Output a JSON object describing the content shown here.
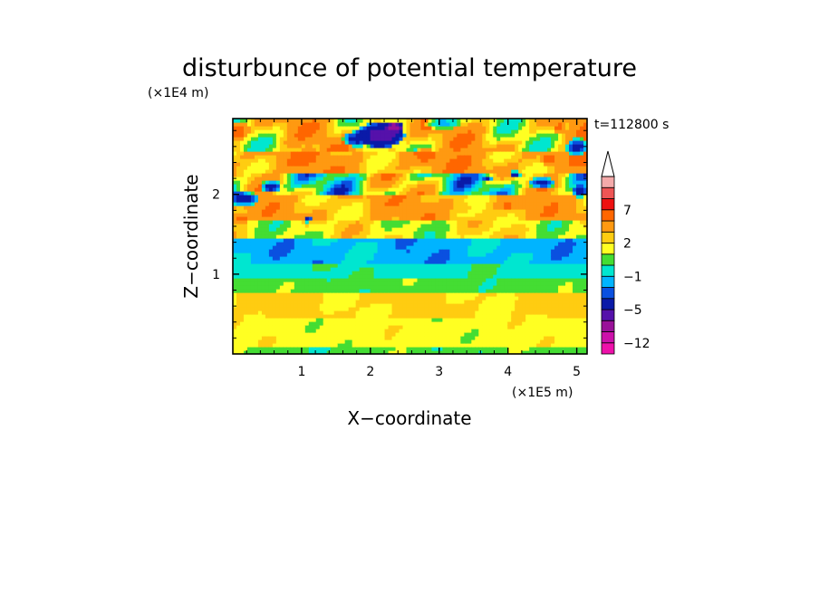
{
  "chart_data": {
    "type": "heatmap",
    "title": "disturbunce of potential temperature",
    "xlabel": "X−coordinate",
    "ylabel": "Z−coordinate",
    "x_unit": "(×1E5 m)",
    "y_unit": "(×1E4 m)",
    "time_label": "t=112800 s",
    "xlim": [
      0,
      5.15
    ],
    "ylim": [
      0,
      2.95
    ],
    "x_ticks": [
      1,
      2,
      3,
      4,
      5
    ],
    "y_ticks": [
      1,
      2
    ],
    "x_tick_labels": [
      "1",
      "2",
      "3",
      "4",
      "5"
    ],
    "y_tick_labels": [
      "1",
      "2"
    ],
    "colorbar": {
      "bins": [
        {
          "lo": -13.5,
          "hi": -12,
          "color": "#ee11aa"
        },
        {
          "lo": -12,
          "hi": -9,
          "color": "#cc11aa"
        },
        {
          "lo": -9,
          "hi": -7,
          "color": "#991199"
        },
        {
          "lo": -7,
          "hi": -5,
          "color": "#5511aa"
        },
        {
          "lo": -5,
          "hi": -3,
          "color": "#0a1aa8"
        },
        {
          "lo": -3,
          "hi": -2,
          "color": "#0a50e0"
        },
        {
          "lo": -2,
          "hi": -1,
          "color": "#00b4ff"
        },
        {
          "lo": -1,
          "hi": 0,
          "color": "#00e6d0"
        },
        {
          "lo": 0,
          "hi": 1,
          "color": "#44dd33"
        },
        {
          "lo": 1,
          "hi": 2,
          "color": "#ffff22"
        },
        {
          "lo": 2,
          "hi": 3,
          "color": "#ffcc11"
        },
        {
          "lo": 3,
          "hi": 5,
          "color": "#ff9911"
        },
        {
          "lo": 5,
          "hi": 7,
          "color": "#ff6600"
        },
        {
          "lo": 7,
          "hi": 9,
          "color": "#ee1111"
        },
        {
          "lo": 9,
          "hi": 11,
          "color": "#ee5555"
        },
        {
          "lo": 11,
          "hi": 13,
          "color": "#f4aaaa"
        }
      ],
      "labels": [
        {
          "value": 7,
          "text": "7"
        },
        {
          "value": 2,
          "text": "2"
        },
        {
          "value": -1,
          "text": "−1"
        },
        {
          "value": -5,
          "text": "−5"
        },
        {
          "value": -12,
          "text": "−12"
        }
      ],
      "extend_top": true
    },
    "layers": [
      {
        "z0": 2.55,
        "z1": 2.95,
        "value": 2.5,
        "amp": 3.5,
        "seed": 1.3
      },
      {
        "z0": 2.25,
        "z1": 2.55,
        "value": 3.5,
        "amp": 2.5,
        "seed": 2.1
      },
      {
        "z0": 2.0,
        "z1": 2.25,
        "value": 1.0,
        "amp": 4.5,
        "seed": 3.7
      },
      {
        "z0": 1.7,
        "z1": 2.0,
        "value": 3.2,
        "amp": 2.2,
        "seed": 4.2
      },
      {
        "z0": 1.45,
        "z1": 1.7,
        "value": 1.6,
        "amp": 1.8,
        "seed": 5.9
      },
      {
        "z0": 1.15,
        "z1": 1.45,
        "value": -1.4,
        "amp": 0.9,
        "seed": 6.4
      },
      {
        "z0": 0.95,
        "z1": 1.15,
        "value": -0.3,
        "amp": 0.6,
        "seed": 7.1
      },
      {
        "z0": 0.75,
        "z1": 0.95,
        "value": 0.5,
        "amp": 0.6,
        "seed": 8.8
      },
      {
        "z0": 0.45,
        "z1": 0.75,
        "value": 2.2,
        "amp": 0.8,
        "seed": 9.3
      },
      {
        "z0": 0.1,
        "z1": 0.45,
        "value": 1.5,
        "amp": 0.6,
        "seed": 10.6
      },
      {
        "z0": 0.0,
        "z1": 0.1,
        "value": 0.5,
        "amp": 0.7,
        "seed": 11.2
      }
    ],
    "features": [
      {
        "x": 2.15,
        "z": 2.75,
        "rx": 0.35,
        "rz": 0.16,
        "value": -6
      },
      {
        "x": 1.8,
        "z": 2.7,
        "rx": 0.2,
        "rz": 0.1,
        "value": -4
      },
      {
        "x": 2.35,
        "z": 2.85,
        "rx": 0.12,
        "rz": 0.07,
        "value": -8
      },
      {
        "x": 0.15,
        "z": 1.95,
        "rx": 0.25,
        "rz": 0.09,
        "value": -4
      },
      {
        "x": 0.55,
        "z": 2.1,
        "rx": 0.15,
        "rz": 0.08,
        "value": -4
      },
      {
        "x": 4.5,
        "z": 2.15,
        "rx": 0.2,
        "rz": 0.07,
        "value": -4
      },
      {
        "x": 5.05,
        "z": 2.05,
        "rx": 0.12,
        "rz": 0.08,
        "value": -4
      },
      {
        "x": 5.0,
        "z": 2.6,
        "rx": 0.15,
        "rz": 0.12,
        "value": -4
      },
      {
        "x": 3.7,
        "z": 2.2,
        "rx": 0.06,
        "rz": 0.04,
        "value": -4
      },
      {
        "x": 4.1,
        "z": 2.25,
        "rx": 0.08,
        "rz": 0.05,
        "value": -4
      },
      {
        "x": 1.1,
        "z": 1.7,
        "rx": 0.06,
        "rz": 0.05,
        "value": -4
      },
      {
        "x": 2.55,
        "z": 1.3,
        "rx": 0.05,
        "rz": 0.03,
        "value": -3
      },
      {
        "x": 0.05,
        "z": 2.8,
        "rx": 0.2,
        "rz": 0.12,
        "value": 6
      },
      {
        "x": 1.1,
        "z": 2.5,
        "rx": 0.15,
        "rz": 0.12,
        "value": 5.5
      },
      {
        "x": 4.6,
        "z": 2.45,
        "rx": 0.12,
        "rz": 0.08,
        "value": 6
      },
      {
        "x": 4.75,
        "z": 2.85,
        "rx": 0.1,
        "rz": 0.08,
        "value": 5.5
      },
      {
        "x": 2.8,
        "z": 2.5,
        "rx": 0.15,
        "rz": 0.1,
        "value": 5.5
      },
      {
        "x": 0.1,
        "z": 1.7,
        "rx": 0.15,
        "rz": 0.08,
        "value": 5.5
      },
      {
        "x": 4.0,
        "z": 1.85,
        "rx": 0.08,
        "rz": 0.05,
        "value": 6
      },
      {
        "x": 3.25,
        "z": 1.85,
        "rx": 0.2,
        "rz": 0.1,
        "value": 3
      },
      {
        "x": 3.05,
        "z": 2.9,
        "rx": 0.25,
        "rz": 0.08,
        "value": -1.5
      }
    ]
  }
}
